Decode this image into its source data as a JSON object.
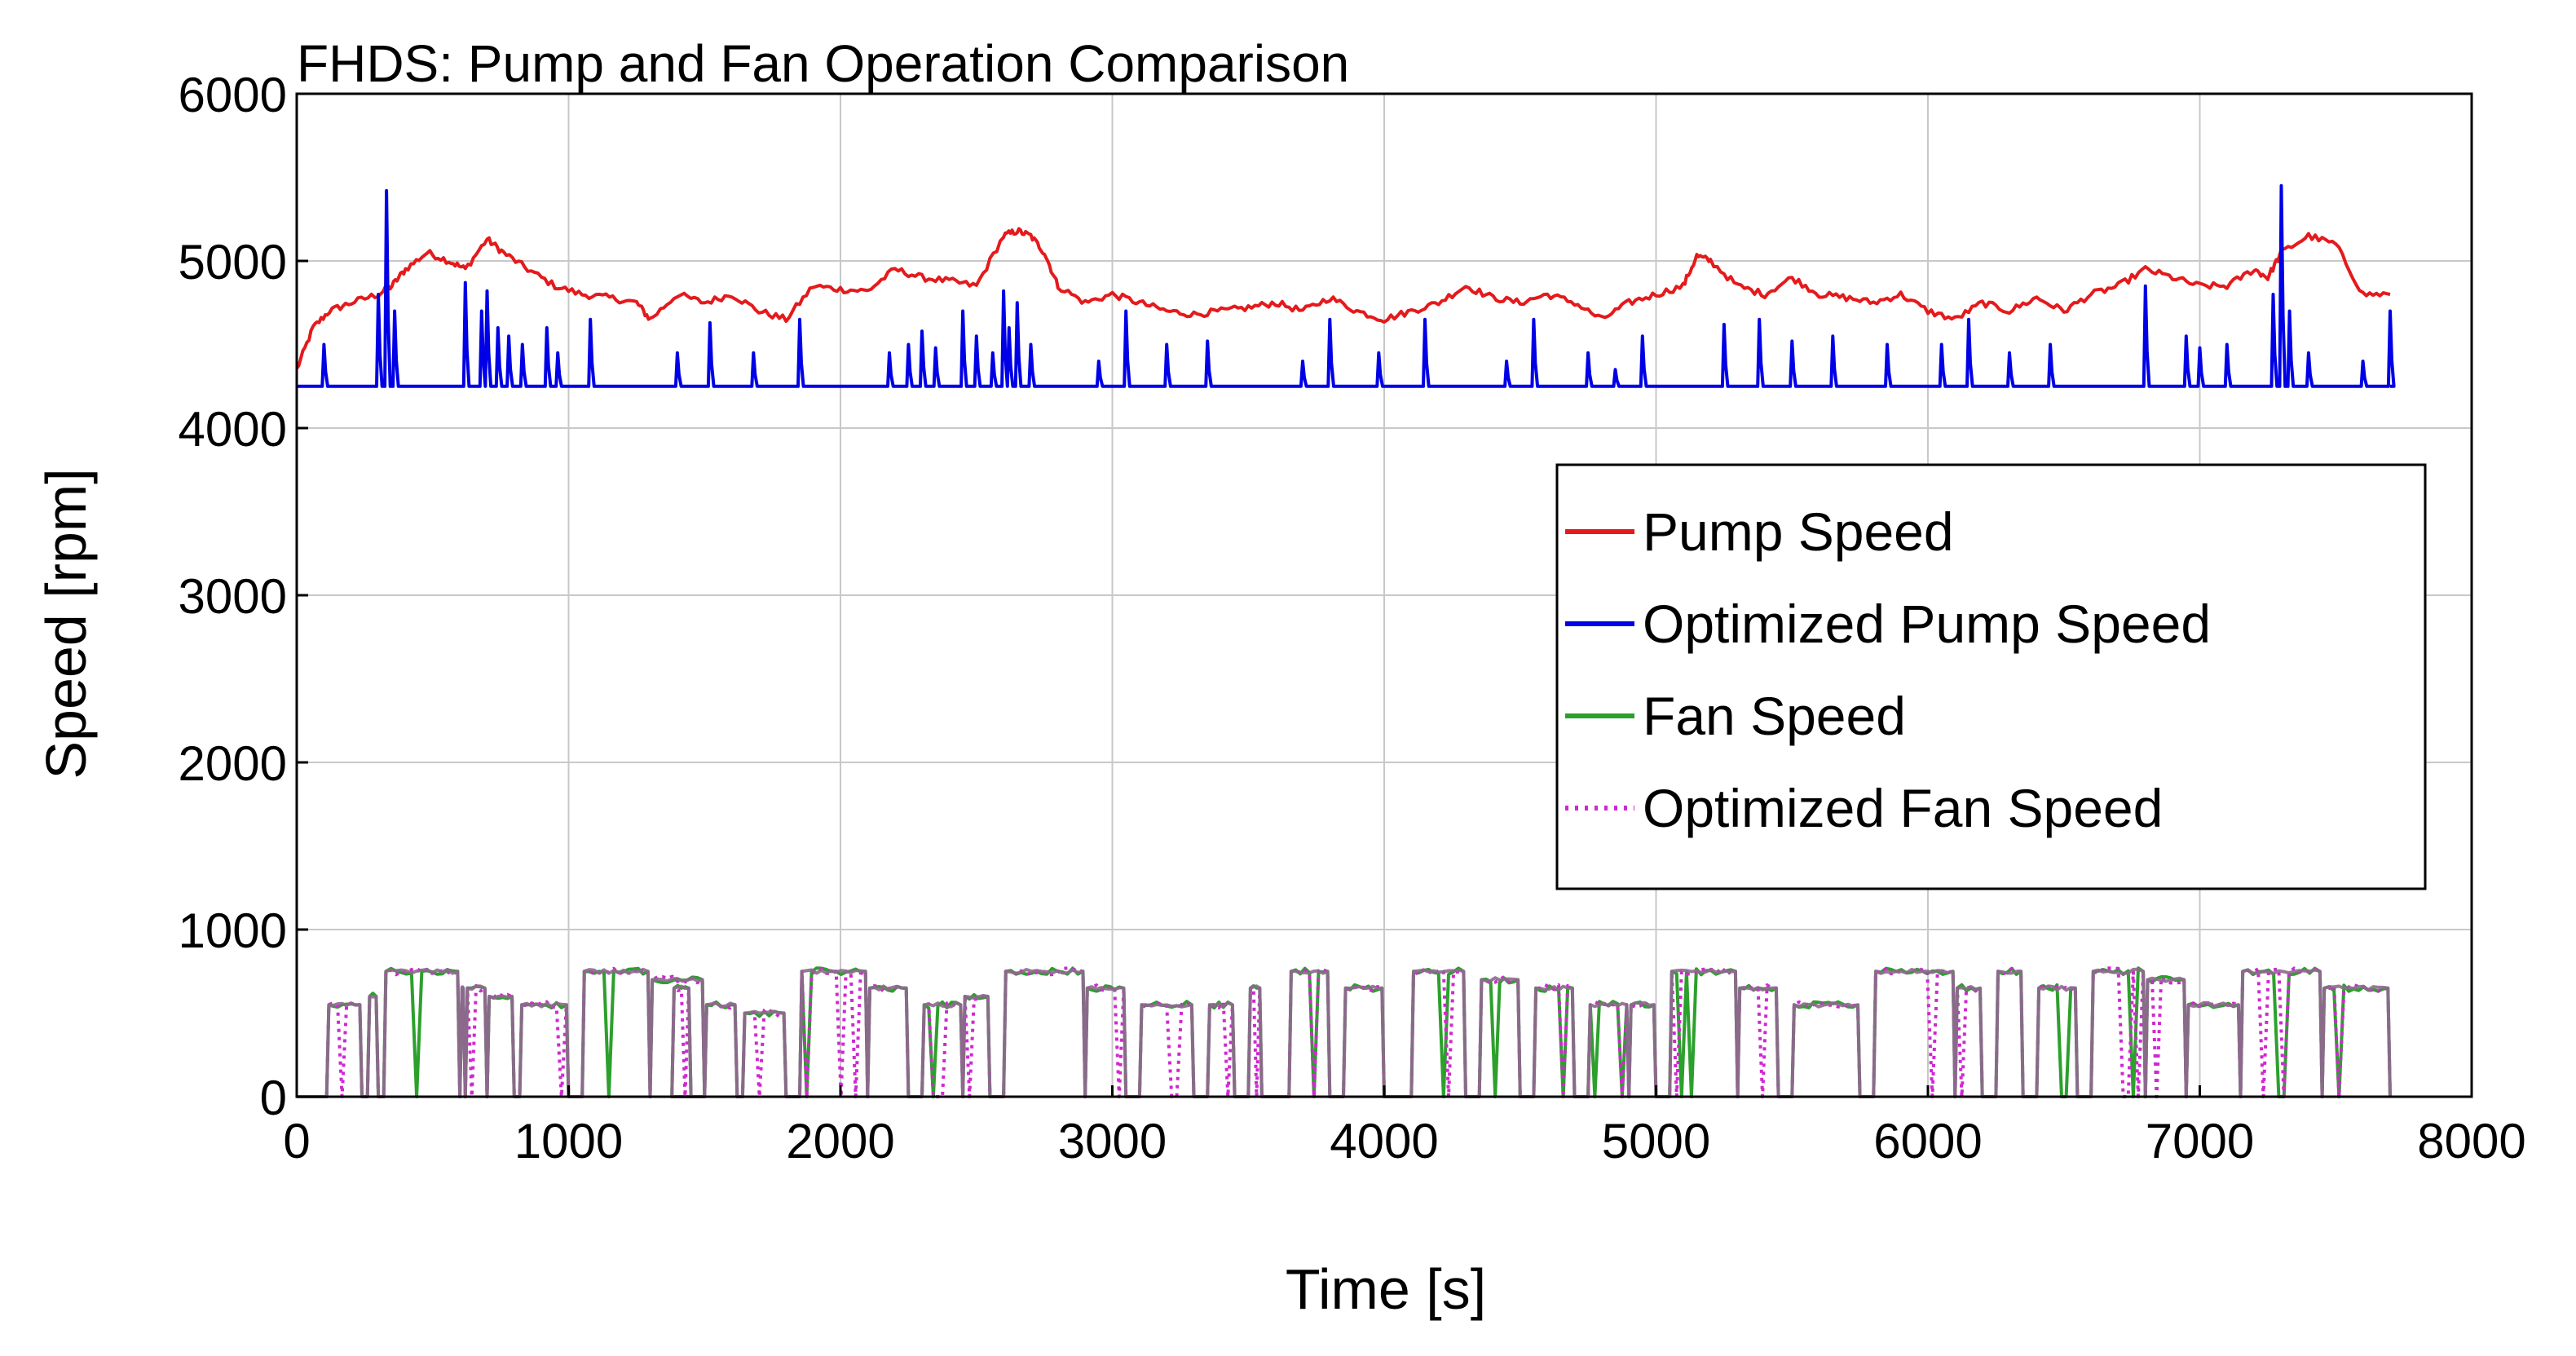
{
  "chart_data": {
    "type": "line",
    "title": "FHDS: Pump and Fan Operation Comparison",
    "xlabel": "Time [s]",
    "ylabel": "Speed [rpm]",
    "xlim": [
      0,
      8000
    ],
    "ylim": [
      0,
      6000
    ],
    "xticks": [
      0,
      1000,
      2000,
      3000,
      4000,
      5000,
      6000,
      7000,
      8000
    ],
    "yticks": [
      0,
      1000,
      2000,
      3000,
      4000,
      5000,
      6000
    ],
    "xtick_labels": [
      "0",
      "1000",
      "2000",
      "3000",
      "4000",
      "5000",
      "6000",
      "7000",
      "8000"
    ],
    "ytick_labels": [
      "0",
      "1000",
      "2000",
      "3000",
      "4000",
      "5000",
      "6000"
    ],
    "grid": true,
    "legend_position": "center-right",
    "series": [
      {
        "name": "Pump Speed",
        "color": "#e41a1c",
        "style": "solid",
        "x": [
          0,
          60,
          120,
          200,
          300,
          350,
          400,
          480,
          560,
          620,
          700,
          760,
          850,
          950,
          1050,
          1150,
          1250,
          1300,
          1400,
          1500,
          1600,
          1700,
          1800,
          1900,
          2000,
          2100,
          2200,
          2300,
          2400,
          2500,
          2600,
          2650,
          2700,
          2750,
          2800,
          2900,
          3000,
          3100,
          3200,
          3300,
          3400,
          3500,
          3600,
          3700,
          3800,
          3900,
          4000,
          4100,
          4200,
          4300,
          4400,
          4500,
          4600,
          4700,
          4800,
          4900,
          5000,
          5100,
          5150,
          5200,
          5300,
          5400,
          5500,
          5600,
          5700,
          5800,
          5900,
          6000,
          6100,
          6200,
          6300,
          6400,
          6500,
          6600,
          6700,
          6800,
          6900,
          7000,
          7100,
          7200,
          7250,
          7300,
          7400,
          7500,
          7600,
          7700
        ],
        "values": [
          4350,
          4600,
          4700,
          4750,
          4800,
          4850,
          4950,
          5050,
          5000,
          4950,
          5130,
          5050,
          4950,
          4850,
          4800,
          4780,
          4750,
          4650,
          4800,
          4750,
          4800,
          4700,
          4650,
          4850,
          4830,
          4820,
          4950,
          4900,
          4880,
          4850,
          5150,
          5180,
          5150,
          5050,
          4850,
          4750,
          4800,
          4750,
          4700,
          4680,
          4700,
          4720,
          4750,
          4700,
          4780,
          4700,
          4650,
          4700,
          4750,
          4850,
          4780,
          4750,
          4800,
          4750,
          4650,
          4750,
          4800,
          4850,
          5030,
          5000,
          4850,
          4800,
          4900,
          4800,
          4780,
          4750,
          4800,
          4700,
          4650,
          4750,
          4700,
          4780,
          4700,
          4800,
          4850,
          4950,
          4900,
          4850,
          4850,
          4950,
          4900,
          5050,
          5150,
          5100,
          4800,
          4800
        ]
      },
      {
        "name": "Optimized Pump Speed",
        "color": "#0000e6",
        "style": "solid",
        "baseline": 4250,
        "x_end": 7700,
        "spikes": [
          [
            100,
            4500
          ],
          [
            300,
            4800
          ],
          [
            330,
            5420
          ],
          [
            360,
            4700
          ],
          [
            620,
            4870
          ],
          [
            680,
            4700
          ],
          [
            700,
            4820
          ],
          [
            740,
            4600
          ],
          [
            780,
            4550
          ],
          [
            830,
            4500
          ],
          [
            920,
            4600
          ],
          [
            960,
            4450
          ],
          [
            1080,
            4650
          ],
          [
            1400,
            4450
          ],
          [
            1520,
            4630
          ],
          [
            1680,
            4450
          ],
          [
            1850,
            4650
          ],
          [
            2180,
            4450
          ],
          [
            2250,
            4500
          ],
          [
            2300,
            4580
          ],
          [
            2350,
            4480
          ],
          [
            2450,
            4700
          ],
          [
            2500,
            4550
          ],
          [
            2560,
            4450
          ],
          [
            2600,
            4820
          ],
          [
            2620,
            4600
          ],
          [
            2650,
            4750
          ],
          [
            2700,
            4500
          ],
          [
            2950,
            4400
          ],
          [
            3050,
            4700
          ],
          [
            3200,
            4500
          ],
          [
            3350,
            4520
          ],
          [
            3700,
            4400
          ],
          [
            3800,
            4650
          ],
          [
            3980,
            4450
          ],
          [
            4150,
            4650
          ],
          [
            4450,
            4400
          ],
          [
            4550,
            4650
          ],
          [
            4750,
            4450
          ],
          [
            4850,
            4350
          ],
          [
            4950,
            4550
          ],
          [
            5250,
            4620
          ],
          [
            5380,
            4650
          ],
          [
            5500,
            4520
          ],
          [
            5650,
            4550
          ],
          [
            5850,
            4500
          ],
          [
            6050,
            4500
          ],
          [
            6150,
            4650
          ],
          [
            6300,
            4450
          ],
          [
            6450,
            4500
          ],
          [
            6800,
            4850
          ],
          [
            6950,
            4550
          ],
          [
            7000,
            4480
          ],
          [
            7100,
            4500
          ],
          [
            7270,
            4800
          ],
          [
            7300,
            5450
          ],
          [
            7330,
            4700
          ],
          [
            7400,
            4450
          ],
          [
            7600,
            4400
          ],
          [
            7700,
            4700
          ]
        ]
      },
      {
        "name": "Fan Speed",
        "color": "#2ca02c",
        "style": "solid",
        "plateaus": [
          [
            0,
            110,
            0
          ],
          [
            110,
            240,
            550
          ],
          [
            260,
            300,
            600
          ],
          [
            320,
            600,
            750
          ],
          [
            600,
            620,
            650
          ],
          [
            620,
            700,
            650
          ],
          [
            700,
            800,
            600
          ],
          [
            820,
            1000,
            550
          ],
          [
            1050,
            1300,
            750
          ],
          [
            1300,
            1500,
            700
          ],
          [
            1380,
            1450,
            650
          ],
          [
            1500,
            1620,
            550
          ],
          [
            1640,
            1800,
            500
          ],
          [
            1850,
            2100,
            750
          ],
          [
            2100,
            2250,
            650
          ],
          [
            2300,
            2450,
            550
          ],
          [
            2450,
            2550,
            600
          ],
          [
            2600,
            2900,
            750
          ],
          [
            2900,
            3050,
            650
          ],
          [
            3100,
            3300,
            550
          ],
          [
            3350,
            3450,
            550
          ],
          [
            3500,
            3550,
            650
          ],
          [
            3650,
            3800,
            750
          ],
          [
            3850,
            4000,
            650
          ],
          [
            4100,
            4300,
            750
          ],
          [
            4350,
            4500,
            700
          ],
          [
            4550,
            4700,
            650
          ],
          [
            4750,
            4900,
            550
          ],
          [
            4900,
            5000,
            550
          ],
          [
            5050,
            5300,
            750
          ],
          [
            5300,
            5450,
            650
          ],
          [
            5500,
            5750,
            550
          ],
          [
            5800,
            6100,
            750
          ],
          [
            6100,
            6200,
            650
          ],
          [
            6250,
            6350,
            750
          ],
          [
            6400,
            6550,
            650
          ],
          [
            6600,
            6800,
            750
          ],
          [
            6800,
            6950,
            700
          ],
          [
            6950,
            7150,
            550
          ],
          [
            7150,
            7450,
            750
          ],
          [
            7450,
            7700,
            650
          ]
        ]
      },
      {
        "name": "Optimized Fan Speed",
        "color": "#d028d0",
        "style": "dotted"
      }
    ]
  }
}
